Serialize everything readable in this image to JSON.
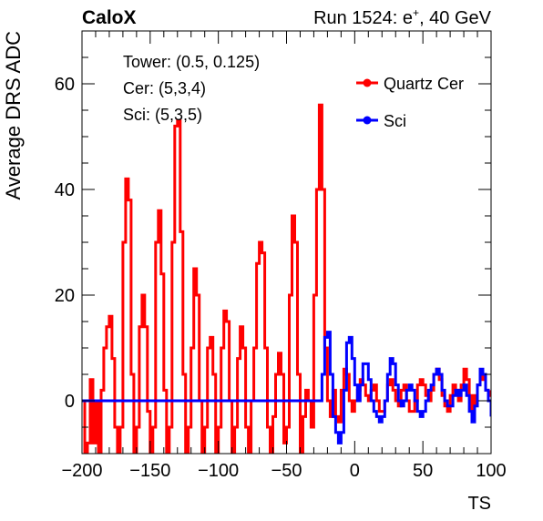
{
  "header": {
    "left_label": "CaloX",
    "right_label_prefix": "Run 1524: e",
    "right_label_sup": "+",
    "right_label_suffix": ", 40 GeV"
  },
  "info_lines": [
    "Tower: (0.5, 0.125)",
    "Cer: (5,3,4)",
    "Sci: (5,3,5)"
  ],
  "colors": {
    "cer": "#ff0000",
    "sci": "#0000ff",
    "axis": "#000000"
  },
  "chart_data": {
    "type": "line",
    "title": "",
    "xlabel": "TS",
    "ylabel": "Average DRS ADC",
    "xlim": [
      -200,
      100
    ],
    "ylim": [
      -10,
      70
    ],
    "x_ticks": [
      -200,
      -150,
      -100,
      -50,
      0,
      50,
      100
    ],
    "y_ticks": [
      0,
      20,
      40,
      60
    ],
    "legend_position": "top-right",
    "grid": false,
    "series": [
      {
        "name": "Quartz Cer",
        "color": "#ff0000",
        "points": [
          [
            -200,
            0
          ],
          [
            -198,
            -10
          ],
          [
            -196,
            -8
          ],
          [
            -194,
            4
          ],
          [
            -192,
            -8
          ],
          [
            -190,
            0
          ],
          [
            -188,
            -10
          ],
          [
            -186,
            2
          ],
          [
            -184,
            10
          ],
          [
            -182,
            14
          ],
          [
            -180,
            16
          ],
          [
            -178,
            8
          ],
          [
            -176,
            -5
          ],
          [
            -174,
            -10
          ],
          [
            -172,
            -5
          ],
          [
            -170,
            30
          ],
          [
            -168,
            42
          ],
          [
            -166,
            38
          ],
          [
            -164,
            5
          ],
          [
            -162,
            -10
          ],
          [
            -160,
            -5
          ],
          [
            -158,
            14
          ],
          [
            -156,
            20
          ],
          [
            -154,
            14
          ],
          [
            -152,
            -2
          ],
          [
            -150,
            -10
          ],
          [
            -148,
            -5
          ],
          [
            -146,
            30
          ],
          [
            -144,
            36
          ],
          [
            -142,
            24
          ],
          [
            -140,
            2
          ],
          [
            -138,
            -10
          ],
          [
            -136,
            -5
          ],
          [
            -134,
            30
          ],
          [
            -132,
            52
          ],
          [
            -130,
            53
          ],
          [
            -128,
            32
          ],
          [
            -126,
            5
          ],
          [
            -124,
            -10
          ],
          [
            -122,
            -5
          ],
          [
            -120,
            10
          ],
          [
            -118,
            25
          ],
          [
            -116,
            20
          ],
          [
            -114,
            0
          ],
          [
            -112,
            -10
          ],
          [
            -110,
            -5
          ],
          [
            -108,
            10
          ],
          [
            -106,
            12
          ],
          [
            -104,
            5
          ],
          [
            -102,
            -10
          ],
          [
            -100,
            -5
          ],
          [
            -98,
            10
          ],
          [
            -96,
            17
          ],
          [
            -94,
            15
          ],
          [
            -92,
            0
          ],
          [
            -90,
            -10
          ],
          [
            -88,
            -5
          ],
          [
            -86,
            8
          ],
          [
            -84,
            14
          ],
          [
            -82,
            10
          ],
          [
            -80,
            -5
          ],
          [
            -78,
            -10
          ],
          [
            -76,
            0
          ],
          [
            -74,
            10
          ],
          [
            -72,
            26
          ],
          [
            -70,
            30
          ],
          [
            -68,
            28
          ],
          [
            -66,
            10
          ],
          [
            -64,
            -5
          ],
          [
            -62,
            -10
          ],
          [
            -60,
            -3
          ],
          [
            -58,
            5
          ],
          [
            -56,
            9
          ],
          [
            -54,
            5
          ],
          [
            -52,
            -8
          ],
          [
            -50,
            -5
          ],
          [
            -48,
            20
          ],
          [
            -46,
            35
          ],
          [
            -44,
            30
          ],
          [
            -42,
            5
          ],
          [
            -40,
            -10
          ],
          [
            -38,
            -3
          ],
          [
            -36,
            2
          ],
          [
            -34,
            0
          ],
          [
            -32,
            -5
          ],
          [
            -30,
            20
          ],
          [
            -28,
            40
          ],
          [
            -26,
            56
          ],
          [
            -24,
            40
          ],
          [
            -22,
            10
          ],
          [
            -20,
            0
          ],
          [
            -18,
            -3
          ],
          [
            -16,
            2
          ],
          [
            -14,
            -3
          ],
          [
            -12,
            -4
          ],
          [
            -10,
            2
          ],
          [
            -8,
            6
          ],
          [
            -6,
            5
          ],
          [
            -4,
            0
          ],
          [
            -2,
            -2
          ],
          [
            0,
            0
          ],
          [
            2,
            2
          ],
          [
            4,
            4
          ],
          [
            6,
            3
          ],
          [
            8,
            1
          ],
          [
            10,
            0
          ],
          [
            12,
            2
          ],
          [
            14,
            3
          ],
          [
            16,
            0
          ],
          [
            18,
            -2
          ],
          [
            20,
            -2
          ],
          [
            22,
            0
          ],
          [
            24,
            3
          ],
          [
            26,
            4
          ],
          [
            28,
            2
          ],
          [
            30,
            0
          ],
          [
            32,
            -1
          ],
          [
            34,
            2
          ],
          [
            36,
            3
          ],
          [
            38,
            0
          ],
          [
            40,
            -2
          ],
          [
            42,
            -2
          ],
          [
            44,
            0
          ],
          [
            46,
            3
          ],
          [
            48,
            4
          ],
          [
            50,
            3
          ],
          [
            52,
            1
          ],
          [
            54,
            0
          ],
          [
            56,
            2
          ],
          [
            58,
            5
          ],
          [
            60,
            6
          ],
          [
            62,
            4
          ],
          [
            64,
            1
          ],
          [
            66,
            -1
          ],
          [
            68,
            -2
          ],
          [
            70,
            1
          ],
          [
            72,
            3
          ],
          [
            74,
            2
          ],
          [
            76,
            0
          ],
          [
            78,
            3
          ],
          [
            80,
            6
          ],
          [
            82,
            4
          ],
          [
            84,
            1
          ],
          [
            86,
            -2
          ],
          [
            88,
            1
          ],
          [
            90,
            3
          ],
          [
            92,
            5
          ],
          [
            94,
            4
          ],
          [
            96,
            2
          ],
          [
            98,
            1
          ],
          [
            100,
            2
          ]
        ]
      },
      {
        "name": "Sci",
        "color": "#0000ff",
        "points": [
          [
            -200,
            0
          ],
          [
            -190,
            0
          ],
          [
            -180,
            0
          ],
          [
            -170,
            0
          ],
          [
            -160,
            0
          ],
          [
            -150,
            0
          ],
          [
            -140,
            0
          ],
          [
            -130,
            0
          ],
          [
            -120,
            0
          ],
          [
            -110,
            0
          ],
          [
            -100,
            0
          ],
          [
            -90,
            0
          ],
          [
            -80,
            0
          ],
          [
            -70,
            0
          ],
          [
            -60,
            0
          ],
          [
            -50,
            0
          ],
          [
            -40,
            0
          ],
          [
            -30,
            0
          ],
          [
            -26,
            0
          ],
          [
            -24,
            5
          ],
          [
            -22,
            12
          ],
          [
            -20,
            13
          ],
          [
            -18,
            5
          ],
          [
            -16,
            -3
          ],
          [
            -14,
            -6
          ],
          [
            -12,
            -8
          ],
          [
            -10,
            -6
          ],
          [
            -8,
            2
          ],
          [
            -6,
            11
          ],
          [
            -4,
            12
          ],
          [
            -2,
            8
          ],
          [
            0,
            3
          ],
          [
            2,
            0
          ],
          [
            4,
            3
          ],
          [
            6,
            7
          ],
          [
            8,
            7
          ],
          [
            10,
            4
          ],
          [
            12,
            0
          ],
          [
            14,
            -2
          ],
          [
            16,
            -3
          ],
          [
            18,
            -4
          ],
          [
            20,
            -3
          ],
          [
            22,
            0
          ],
          [
            24,
            5
          ],
          [
            26,
            8
          ],
          [
            28,
            7
          ],
          [
            30,
            3
          ],
          [
            32,
            0
          ],
          [
            34,
            -1
          ],
          [
            36,
            0
          ],
          [
            38,
            2
          ],
          [
            40,
            3
          ],
          [
            42,
            2
          ],
          [
            44,
            0
          ],
          [
            46,
            -2
          ],
          [
            48,
            -3
          ],
          [
            50,
            -2
          ],
          [
            52,
            0
          ],
          [
            54,
            2
          ],
          [
            56,
            3
          ],
          [
            58,
            5
          ],
          [
            60,
            6
          ],
          [
            62,
            5
          ],
          [
            64,
            2
          ],
          [
            66,
            0
          ],
          [
            68,
            -1
          ],
          [
            70,
            -1
          ],
          [
            72,
            1
          ],
          [
            74,
            2
          ],
          [
            76,
            1
          ],
          [
            78,
            2
          ],
          [
            80,
            3
          ],
          [
            82,
            1
          ],
          [
            84,
            -2
          ],
          [
            86,
            -4
          ],
          [
            88,
            -1
          ],
          [
            90,
            3
          ],
          [
            92,
            6
          ],
          [
            94,
            5
          ],
          [
            96,
            2
          ],
          [
            98,
            0
          ],
          [
            100,
            -3
          ]
        ]
      }
    ]
  }
}
